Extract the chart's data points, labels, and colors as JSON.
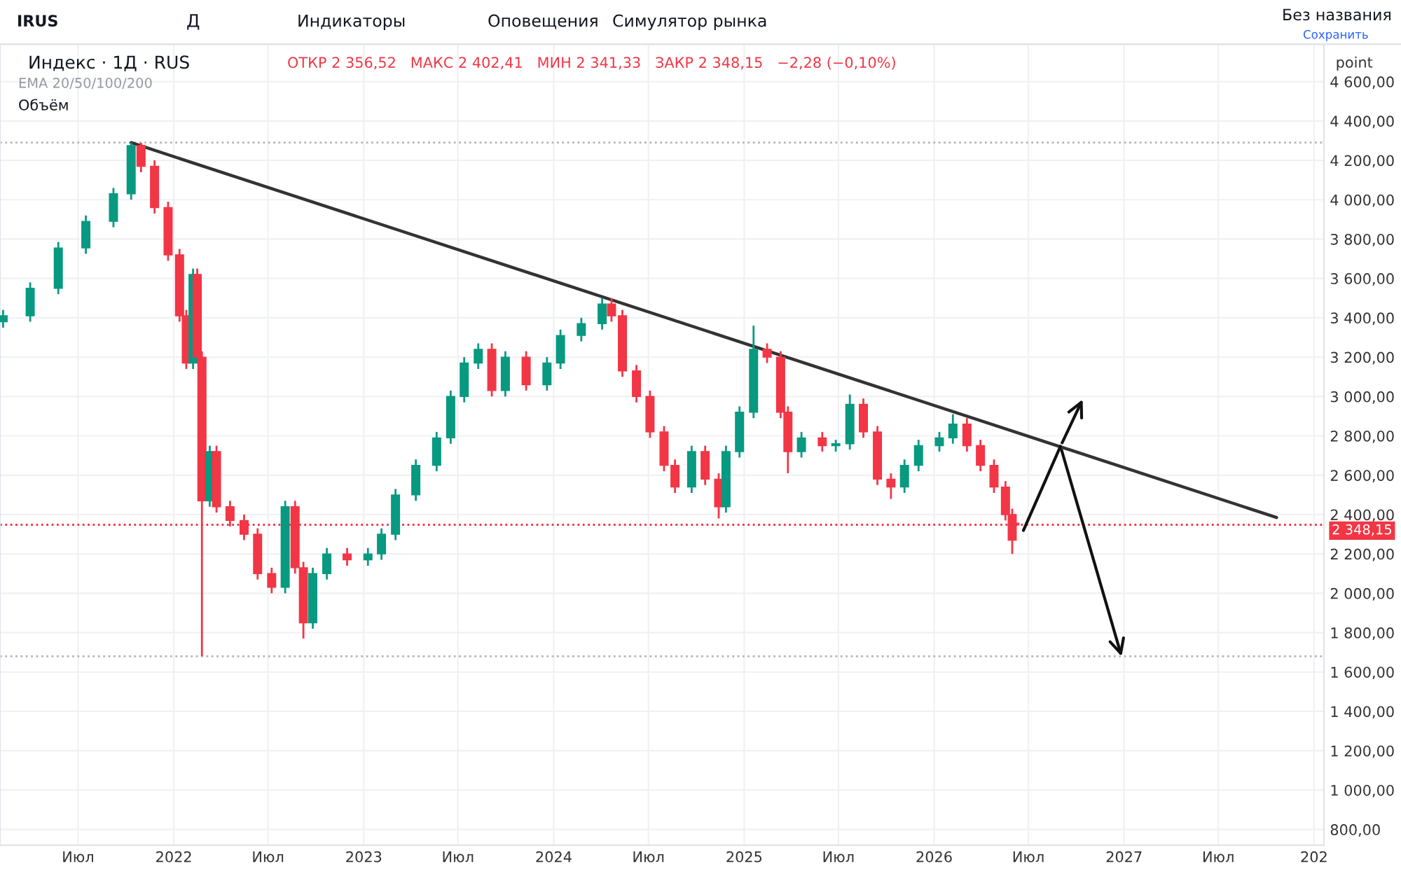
{
  "chart_data": {
    "type": "candlestick",
    "title": "Индекс · 1Д · RUS",
    "subtitle": "ОТКР 2 356,52   МАКС 2 402,41   МИН 2 341,33   ЗАКР 2 348,15   −2,28 (−0,10%)",
    "ylabel": "point",
    "annotations": [
      "IRUS",
      "Д",
      "Индикаторы",
      "Оповещения",
      "Симулятор рынка",
      "Без названия",
      "Сохранить",
      "EMA 20/50/100/200",
      "Объём"
    ],
    "x": [
      "2021-02-07",
      "2021-03-31",
      "2021-05-24",
      "2021-07-16",
      "2021-09-07",
      "2021-10-11",
      "2021-10-30",
      "2021-11-25",
      "2021-12-21",
      "2022-01-12",
      "2022-01-25",
      "2022-02-07",
      "2022-02-15",
      "2022-02-24",
      "2022-03-11",
      "2022-03-24",
      "2022-04-19",
      "2022-05-16",
      "2022-06-11",
      "2022-07-08",
      "2022-08-03",
      "2022-08-22",
      "2022-09-07",
      "2022-09-25",
      "2022-10-22",
      "2022-11-30",
      "2023-01-09",
      "2023-02-04",
      "2023-03-03",
      "2023-04-11",
      "2023-05-21",
      "2023-06-17",
      "2023-07-13",
      "2023-08-09",
      "2023-09-04",
      "2023-09-30",
      "2023-11-09",
      "2023-12-19",
      "2024-01-14",
      "2024-02-23",
      "2024-04-03",
      "2024-04-21",
      "2024-05-12",
      "2024-06-08",
      "2024-07-04",
      "2024-07-31",
      "2024-08-21",
      "2024-09-22",
      "2024-10-18",
      "2024-11-13",
      "2024-11-27",
      "2024-12-23",
      "2025-01-19",
      "2025-02-14",
      "2025-03-12",
      "2025-03-26",
      "2025-04-21",
      "2025-05-31",
      "2025-06-26",
      "2025-07-23",
      "2025-08-18",
      "2025-09-14",
      "2025-10-10",
      "2025-11-05",
      "2025-12-02",
      "2026-01-11",
      "2026-02-06",
      "2026-03-05",
      "2026-03-31",
      "2026-04-26",
      "2026-05-18",
      "2026-05-31",
      "2026-06-05"
    ],
    "ohlc": [
      [
        3380,
        3440,
        3350,
        3410
      ],
      [
        3410,
        3580,
        3380,
        3550
      ],
      [
        3550,
        3785,
        3520,
        3755
      ],
      [
        3755,
        3920,
        3725,
        3890
      ],
      [
        3890,
        4060,
        3860,
        4030
      ],
      [
        4030,
        4290,
        4000,
        4275
      ],
      [
        4275,
        4290,
        4140,
        4170
      ],
      [
        4170,
        4200,
        3930,
        3960
      ],
      [
        3960,
        3990,
        3690,
        3720
      ],
      [
        3720,
        3750,
        3380,
        3410
      ],
      [
        3410,
        3440,
        3140,
        3170
      ],
      [
        3170,
        3650,
        3140,
        3620
      ],
      [
        3620,
        3650,
        3170,
        3200
      ],
      [
        3200,
        3230,
        1680,
        2470
      ],
      [
        2470,
        2750,
        2440,
        2720
      ],
      [
        2720,
        2750,
        2410,
        2440
      ],
      [
        2440,
        2470,
        2340,
        2370
      ],
      [
        2370,
        2400,
        2270,
        2300
      ],
      [
        2300,
        2330,
        2070,
        2100
      ],
      [
        2100,
        2130,
        2000,
        2030
      ],
      [
        2030,
        2470,
        2000,
        2440
      ],
      [
        2440,
        2470,
        2100,
        2130
      ],
      [
        2130,
        2160,
        1770,
        1850
      ],
      [
        1850,
        2130,
        1820,
        2100
      ],
      [
        2100,
        2230,
        2070,
        2200
      ],
      [
        2200,
        2230,
        2140,
        2170
      ],
      [
        2170,
        2230,
        2140,
        2200
      ],
      [
        2200,
        2330,
        2170,
        2300
      ],
      [
        2300,
        2530,
        2270,
        2500
      ],
      [
        2500,
        2680,
        2470,
        2650
      ],
      [
        2650,
        2820,
        2620,
        2790
      ],
      [
        2790,
        3030,
        2760,
        3000
      ],
      [
        3000,
        3200,
        2970,
        3170
      ],
      [
        3170,
        3270,
        3140,
        3240
      ],
      [
        3240,
        3270,
        3000,
        3030
      ],
      [
        3030,
        3230,
        3000,
        3200
      ],
      [
        3200,
        3230,
        3030,
        3060
      ],
      [
        3060,
        3200,
        3030,
        3170
      ],
      [
        3170,
        3340,
        3140,
        3310
      ],
      [
        3310,
        3400,
        3280,
        3370
      ],
      [
        3370,
        3500,
        3340,
        3470
      ],
      [
        3470,
        3500,
        3380,
        3410
      ],
      [
        3410,
        3440,
        3100,
        3130
      ],
      [
        3130,
        3160,
        2970,
        3000
      ],
      [
        3000,
        3030,
        2790,
        2820
      ],
      [
        2820,
        2850,
        2620,
        2650
      ],
      [
        2650,
        2680,
        2510,
        2540
      ],
      [
        2540,
        2750,
        2510,
        2720
      ],
      [
        2720,
        2750,
        2550,
        2580
      ],
      [
        2580,
        2610,
        2380,
        2440
      ],
      [
        2440,
        2750,
        2410,
        2720
      ],
      [
        2720,
        2950,
        2690,
        2920
      ],
      [
        2920,
        3360,
        2890,
        3240
      ],
      [
        3240,
        3270,
        3170,
        3200
      ],
      [
        3200,
        3230,
        2890,
        2920
      ],
      [
        2920,
        2950,
        2610,
        2720
      ],
      [
        2720,
        2820,
        2690,
        2790
      ],
      [
        2790,
        2820,
        2720,
        2750
      ],
      [
        2750,
        2780,
        2720,
        2760
      ],
      [
        2760,
        3010,
        2730,
        2960
      ],
      [
        2960,
        2990,
        2790,
        2820
      ],
      [
        2820,
        2850,
        2550,
        2580
      ],
      [
        2580,
        2610,
        2480,
        2540
      ],
      [
        2540,
        2680,
        2510,
        2650
      ],
      [
        2650,
        2780,
        2620,
        2750
      ],
      [
        2750,
        2820,
        2720,
        2790
      ],
      [
        2790,
        2910,
        2760,
        2860
      ],
      [
        2860,
        2890,
        2720,
        2750
      ],
      [
        2750,
        2780,
        2620,
        2650
      ],
      [
        2650,
        2680,
        2510,
        2540
      ],
      [
        2540,
        2570,
        2370,
        2400
      ],
      [
        2400,
        2430,
        2200,
        2270
      ],
      [
        2356.52,
        2402.41,
        2341.33,
        2348.15
      ]
    ],
    "colors": [
      "#089981",
      "#089981",
      "#089981",
      "#089981",
      "#089981",
      "#089981",
      "#f23645",
      "#f23645",
      "#f23645",
      "#f23645",
      "#f23645",
      "#089981",
      "#f23645",
      "#f23645",
      "#089981",
      "#f23645",
      "#f23645",
      "#f23645",
      "#f23645",
      "#f23645",
      "#089981",
      "#f23645",
      "#f23645",
      "#089981",
      "#089981",
      "#f23645",
      "#089981",
      "#089981",
      "#089981",
      "#089981",
      "#089981",
      "#089981",
      "#089981",
      "#089981",
      "#f23645",
      "#089981",
      "#f23645",
      "#089981",
      "#089981",
      "#089981",
      "#089981",
      "#f23645",
      "#f23645",
      "#f23645",
      "#f23645",
      "#f23645",
      "#f23645",
      "#089981",
      "#f23645",
      "#f23645",
      "#089981",
      "#089981",
      "#089981",
      "#f23645",
      "#f23645",
      "#f23645",
      "#089981",
      "#f23645",
      "#089981",
      "#089981",
      "#f23645",
      "#f23645",
      "#f23645",
      "#089981",
      "#089981",
      "#089981",
      "#089981",
      "#f23645",
      "#f23645",
      "#f23645",
      "#f23645",
      "#f23645",
      "#f23645"
    ],
    "series": [
      {
        "type": "line",
        "x": [
          "2021-10-11",
          "2027-10-21"
        ],
        "values": [
          4290,
          2385
        ],
        "color": "#333333"
      }
    ],
    "ref_lines": [
      {
        "axis": "y",
        "value": 4290,
        "color": "#b2b5be",
        "line_style": "dotted"
      },
      {
        "axis": "y",
        "value": 1680,
        "color": "#b2b5be",
        "line_style": "dotted"
      },
      {
        "axis": "y",
        "value": 2348.15,
        "label": "2 348,15",
        "color": "#f23645",
        "line_style": "dotted"
      }
    ],
    "xlim": [
      "2021-02-01",
      "2028-01-20"
    ],
    "ylim": [
      720,
      4790
    ],
    "xticks": [
      {
        "value": "2021-07-01",
        "label": "Июл"
      },
      {
        "value": "2022-01-01",
        "label": "2022"
      },
      {
        "value": "2022-07-01",
        "label": "Июл"
      },
      {
        "value": "2023-01-01",
        "label": "2023"
      },
      {
        "value": "2023-07-01",
        "label": "Июл"
      },
      {
        "value": "2024-01-01",
        "label": "2024"
      },
      {
        "value": "2024-07-01",
        "label": "Июл"
      },
      {
        "value": "2025-01-01",
        "label": "2025"
      },
      {
        "value": "2025-07-01",
        "label": "Июл"
      },
      {
        "value": "2026-01-01",
        "label": "2026"
      },
      {
        "value": "2026-07-01",
        "label": "Июл"
      },
      {
        "value": "2027-01-01",
        "label": "2027"
      },
      {
        "value": "2027-07-01",
        "label": "Июл"
      },
      {
        "value": "2028-01-01",
        "label": "202"
      }
    ],
    "yticks": [
      {
        "value": 800,
        "label": "800,00"
      },
      {
        "value": 1000,
        "label": "1 000,00"
      },
      {
        "value": 1200,
        "label": "1 200,00"
      },
      {
        "value": 1400,
        "label": "1 400,00"
      },
      {
        "value": 1600,
        "label": "1 600,00"
      },
      {
        "value": 1800,
        "label": "1 800,00"
      },
      {
        "value": 2000,
        "label": "2 000,00"
      },
      {
        "value": 2200,
        "label": "2 200,00"
      },
      {
        "value": 2400,
        "label": "2 400,00"
      },
      {
        "value": 2600,
        "label": "2 600,00"
      },
      {
        "value": 2800,
        "label": "2 800,00"
      },
      {
        "value": 3000,
        "label": "3 000,00"
      },
      {
        "value": 3200,
        "label": "3 200,00"
      },
      {
        "value": 3400,
        "label": "3 400,00"
      },
      {
        "value": 3600,
        "label": "3 600,00"
      },
      {
        "value": 3800,
        "label": "3 800,00"
      },
      {
        "value": 4000,
        "label": "4 000,00"
      },
      {
        "value": 4200,
        "label": "4 200,00"
      },
      {
        "value": 4400,
        "label": "4 400,00"
      },
      {
        "value": 4600,
        "label": "4 600,00"
      }
    ],
    "grid": true,
    "legend": false
  }
}
